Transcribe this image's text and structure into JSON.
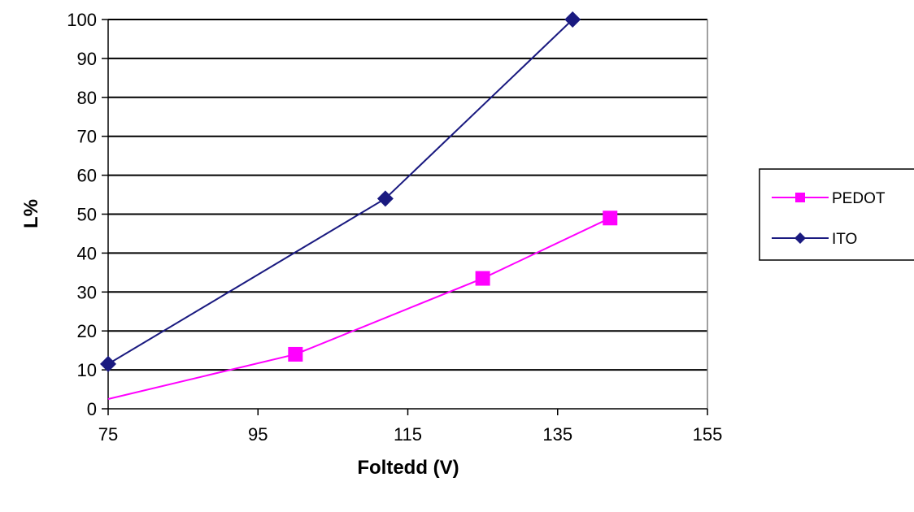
{
  "chart_data": {
    "type": "line",
    "title": "",
    "xlabel": "Foltedd (V)",
    "ylabel": "L%",
    "xlim": [
      75,
      155
    ],
    "ylim": [
      0,
      100
    ],
    "x_ticks": [
      75,
      95,
      115,
      135,
      155
    ],
    "y_ticks": [
      0,
      10,
      20,
      30,
      40,
      50,
      60,
      70,
      80,
      90,
      100
    ],
    "grid": "horizontal",
    "legend_position": "right",
    "series": [
      {
        "name": "PEDOT",
        "color": "#ff00ff",
        "marker": "square",
        "start_point": {
          "x": 75,
          "y": 2.5,
          "marker": false
        },
        "points": [
          {
            "x": 100,
            "y": 14
          },
          {
            "x": 125,
            "y": 33.5
          },
          {
            "x": 142,
            "y": 49
          }
        ]
      },
      {
        "name": "ITO",
        "color": "#1a1a80",
        "marker": "diamond",
        "points": [
          {
            "x": 75,
            "y": 11.5
          },
          {
            "x": 112,
            "y": 54
          },
          {
            "x": 137,
            "y": 100
          }
        ]
      }
    ]
  }
}
